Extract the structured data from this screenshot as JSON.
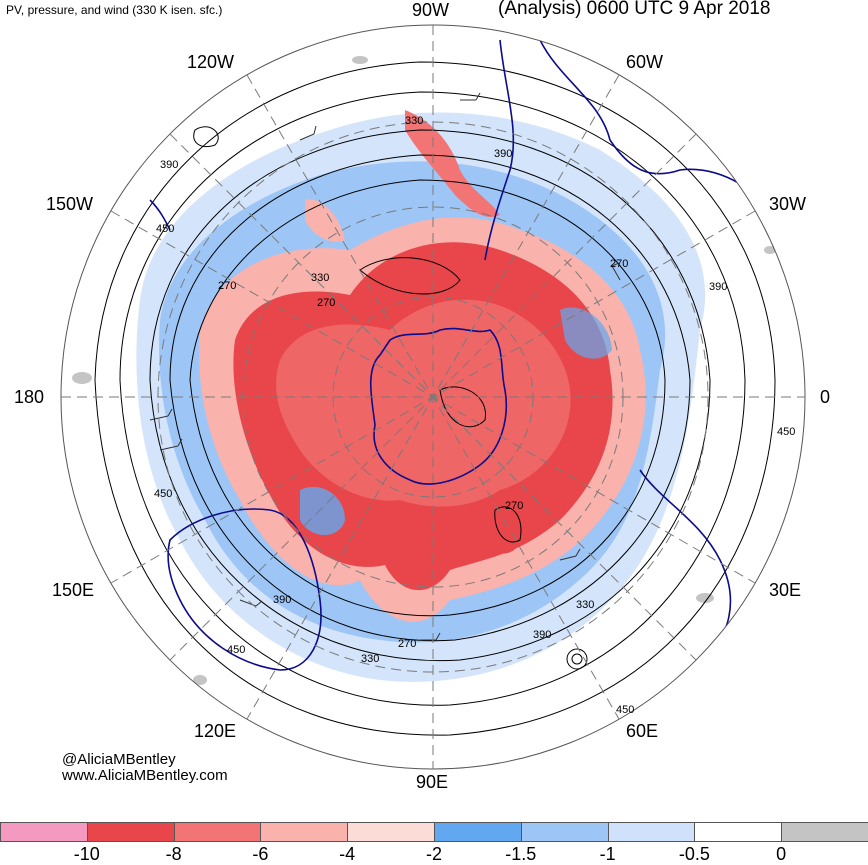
{
  "header": {
    "product": "PV, pressure, and wind (330 K isen. sfc.)",
    "valid": "(Analysis) 0600 UTC 9 Apr 2018"
  },
  "longitude_labels": {
    "top": "90W",
    "upper_left": "120W",
    "upper_right": "60W",
    "mid_left": "150W",
    "mid_right": "30W",
    "left": "180",
    "right": "0",
    "lower_left_mid": "150E",
    "lower_right_mid": "30E",
    "lower_left": "120E",
    "lower_right": "60E",
    "bottom": "90E"
  },
  "contour_labels": [
    "330",
    "390",
    "390",
    "450",
    "330",
    "270",
    "270",
    "270",
    "390",
    "450",
    "270",
    "330",
    "390",
    "450",
    "390",
    "330",
    "270",
    "450",
    "450"
  ],
  "credits": {
    "handle": "@AliciaMBentley",
    "site": "www.AliciaMBentley.com"
  },
  "colorbar": {
    "colors": [
      "#f49ac1",
      "#e8464a",
      "#f27474",
      "#f9b2ac",
      "#fcdcd6",
      "#62a8f0",
      "#9dc6f7",
      "#cfe1fb",
      "#ffffff",
      "#c4c4c4"
    ],
    "ticks": [
      "-10",
      "-8",
      "-6",
      "-4",
      "-2",
      "-1.5",
      "-1",
      "-0.5",
      "0"
    ]
  },
  "colors": {
    "negative_pv_core": "#e8464a",
    "coast": "#0b0b8c",
    "contour": "#000000"
  }
}
